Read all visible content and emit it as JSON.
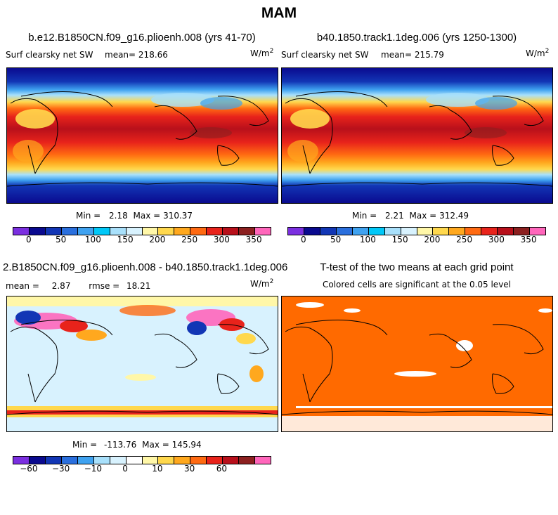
{
  "figure_title": "MAM",
  "units": "W/m",
  "units_exp": "2",
  "panels": {
    "a": {
      "title": "b.e12.B1850CN.f09_g16.plioenh.008 (yrs 41-70)",
      "field": "Surf clearsky net SW",
      "mean_label": "mean=",
      "mean": "218.66",
      "min_label": "Min =",
      "min": "2.18",
      "max_label": "Max =",
      "max": "310.37"
    },
    "b": {
      "title": "b40.1850.track1.1deg.006 (yrs 1250-1300)",
      "field": "Surf clearsky net SW",
      "mean_label": "mean=",
      "mean": "215.79",
      "min_label": "Min =",
      "min": "2.21",
      "max_label": "Max =",
      "max": "312.49"
    },
    "c": {
      "title": "2.B1850CN.f09_g16.plioenh.008 - b40.1850.track1.1deg.006",
      "mean_label": "mean =",
      "mean": "2.87",
      "rmse_label": "rmse =",
      "rmse": "18.21",
      "min_label": "Min =",
      "min": "-113.76",
      "max_label": "Max =",
      "max": "145.94"
    },
    "d": {
      "title": "T-test of the two means at each grid point",
      "subtitle": "Colored cells are significant at the 0.05 level"
    }
  },
  "chart_data": [
    {
      "type": "heatmap",
      "panel": "a",
      "title": "b.e12.B1850CN.f09_g16.plioenh.008 (yrs 41-70)",
      "variable": "Surf clearsky net SW",
      "units": "W/m^2",
      "mean": 218.66,
      "min": 2.18,
      "max": 310.37,
      "colorbar_ticks": [
        "0",
        "50",
        "100",
        "150",
        "200",
        "250",
        "300",
        "350"
      ],
      "colorbar_colors": [
        "#7b2fe0",
        "#0a0a8f",
        "#1236b5",
        "#2a6fdd",
        "#3fa2f0",
        "#00c8f8",
        "#a8e0fb",
        "#d8f2fe",
        "#fff7a8",
        "#ffd84d",
        "#ffa81e",
        "#ff6a12",
        "#e8231b",
        "#b8101b",
        "#8c2020",
        "#ff66bb"
      ]
    },
    {
      "type": "heatmap",
      "panel": "b",
      "title": "b40.1850.track1.1deg.006 (yrs 1250-1300)",
      "variable": "Surf clearsky net SW",
      "units": "W/m^2",
      "mean": 215.79,
      "min": 2.21,
      "max": 312.49,
      "colorbar_ticks": [
        "0",
        "50",
        "100",
        "150",
        "200",
        "250",
        "300",
        "350"
      ],
      "colorbar_colors": [
        "#7b2fe0",
        "#0a0a8f",
        "#1236b5",
        "#2a6fdd",
        "#3fa2f0",
        "#00c8f8",
        "#a8e0fb",
        "#d8f2fe",
        "#fff7a8",
        "#ffd84d",
        "#ffa81e",
        "#ff6a12",
        "#e8231b",
        "#b8101b",
        "#8c2020",
        "#ff66bb"
      ]
    },
    {
      "type": "heatmap",
      "panel": "c",
      "title": "2.B1850CN.f09_g16.plioenh.008 - b40.1850.track1.1deg.006",
      "units": "W/m^2",
      "mean": 2.87,
      "rmse": 18.21,
      "min": -113.76,
      "max": 145.94,
      "colorbar_ticks": [
        "-60",
        "-30",
        "-10",
        "0",
        "10",
        "30",
        "60"
      ],
      "colorbar_colors": [
        "#7b2fe0",
        "#0a0a8f",
        "#1236b5",
        "#2a6fdd",
        "#3fa2f0",
        "#a8e0fb",
        "#d8f2fe",
        "#ffffff",
        "#fff7a8",
        "#ffd84d",
        "#ffa81e",
        "#ff6a12",
        "#e8231b",
        "#b8101b",
        "#8c2020",
        "#ff66bb"
      ]
    },
    {
      "type": "heatmap",
      "panel": "d",
      "title": "T-test of the two means at each grid point",
      "subtitle": "Colored cells are significant at the 0.05 level",
      "significance_level": 0.05,
      "colors": [
        "#ff6a00",
        "#ffffff"
      ]
    }
  ]
}
